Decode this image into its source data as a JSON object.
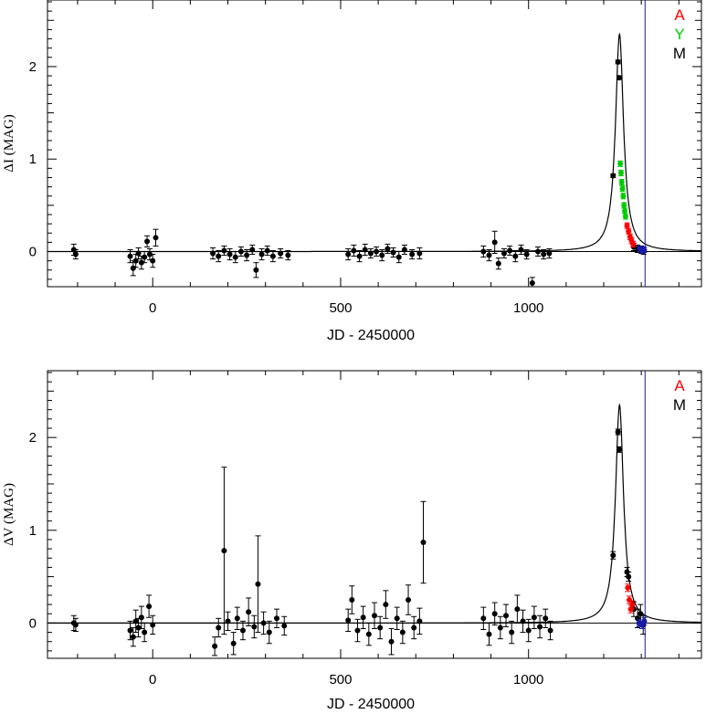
{
  "chart_data": [
    {
      "type": "scatter",
      "title": "",
      "xlabel": "JD - 2450000",
      "ylabel": "ΔI (MAG)",
      "xlim": [
        -280,
        1460
      ],
      "ylim": [
        -0.38,
        2.72
      ],
      "xticks": [
        0,
        500,
        1000
      ],
      "yticks": [
        0,
        1,
        2
      ],
      "grid": false,
      "legend": {
        "placement": "top-right",
        "entries": [
          {
            "label": "A",
            "color": "#ff0000"
          },
          {
            "label": "Y",
            "color": "#00cc00"
          },
          {
            "label": "M",
            "color": "#000000"
          }
        ]
      },
      "vline_x": 1310,
      "model_peak": {
        "t0": 1242,
        "amp": 2.35,
        "tE_half": 13
      },
      "series": [
        {
          "name": "M",
          "color": "#000000",
          "points": [
            {
              "x": -210,
              "y": 0.02,
              "e": 0.06
            },
            {
              "x": -205,
              "y": -0.03,
              "e": 0.05
            },
            {
              "x": -60,
              "y": -0.05,
              "e": 0.07
            },
            {
              "x": -52,
              "y": -0.18,
              "e": 0.08
            },
            {
              "x": -45,
              "y": -0.1,
              "e": 0.07
            },
            {
              "x": -38,
              "y": -0.02,
              "e": 0.06
            },
            {
              "x": -30,
              "y": -0.12,
              "e": 0.07
            },
            {
              "x": -22,
              "y": -0.06,
              "e": 0.06
            },
            {
              "x": -15,
              "y": 0.11,
              "e": 0.06
            },
            {
              "x": -8,
              "y": -0.03,
              "e": 0.06
            },
            {
              "x": 0,
              "y": -0.1,
              "e": 0.07
            },
            {
              "x": 8,
              "y": 0.15,
              "e": 0.09
            },
            {
              "x": 160,
              "y": -0.02,
              "e": 0.06
            },
            {
              "x": 175,
              "y": -0.05,
              "e": 0.06
            },
            {
              "x": 190,
              "y": 0.01,
              "e": 0.05
            },
            {
              "x": 205,
              "y": -0.03,
              "e": 0.06
            },
            {
              "x": 220,
              "y": -0.06,
              "e": 0.06
            },
            {
              "x": 235,
              "y": 0.0,
              "e": 0.05
            },
            {
              "x": 250,
              "y": -0.04,
              "e": 0.06
            },
            {
              "x": 265,
              "y": 0.02,
              "e": 0.05
            },
            {
              "x": 275,
              "y": -0.2,
              "e": 0.08
            },
            {
              "x": 290,
              "y": -0.03,
              "e": 0.06
            },
            {
              "x": 305,
              "y": 0.01,
              "e": 0.05
            },
            {
              "x": 320,
              "y": -0.05,
              "e": 0.06
            },
            {
              "x": 340,
              "y": -0.02,
              "e": 0.05
            },
            {
              "x": 360,
              "y": -0.04,
              "e": 0.05
            },
            {
              "x": 520,
              "y": -0.03,
              "e": 0.06
            },
            {
              "x": 535,
              "y": 0.01,
              "e": 0.06
            },
            {
              "x": 550,
              "y": -0.05,
              "e": 0.06
            },
            {
              "x": 565,
              "y": 0.02,
              "e": 0.06
            },
            {
              "x": 580,
              "y": -0.02,
              "e": 0.05
            },
            {
              "x": 595,
              "y": 0.0,
              "e": 0.05
            },
            {
              "x": 610,
              "y": -0.04,
              "e": 0.06
            },
            {
              "x": 625,
              "y": 0.03,
              "e": 0.05
            },
            {
              "x": 640,
              "y": -0.01,
              "e": 0.05
            },
            {
              "x": 655,
              "y": -0.06,
              "e": 0.06
            },
            {
              "x": 670,
              "y": 0.02,
              "e": 0.05
            },
            {
              "x": 690,
              "y": -0.03,
              "e": 0.05
            },
            {
              "x": 710,
              "y": -0.02,
              "e": 0.06
            },
            {
              "x": 880,
              "y": 0.0,
              "e": 0.06
            },
            {
              "x": 895,
              "y": -0.04,
              "e": 0.06
            },
            {
              "x": 910,
              "y": 0.1,
              "e": 0.12
            },
            {
              "x": 920,
              "y": -0.13,
              "e": 0.06
            },
            {
              "x": 935,
              "y": -0.02,
              "e": 0.05
            },
            {
              "x": 950,
              "y": 0.01,
              "e": 0.05
            },
            {
              "x": 965,
              "y": -0.05,
              "e": 0.06
            },
            {
              "x": 980,
              "y": 0.02,
              "e": 0.05
            },
            {
              "x": 995,
              "y": -0.03,
              "e": 0.05
            },
            {
              "x": 1010,
              "y": -0.34,
              "e": 0.06
            },
            {
              "x": 1025,
              "y": 0.0,
              "e": 0.05
            },
            {
              "x": 1040,
              "y": -0.03,
              "e": 0.05
            },
            {
              "x": 1055,
              "y": -0.02,
              "e": 0.05
            },
            {
              "x": 1225,
              "y": 0.82,
              "e": 0.02
            },
            {
              "x": 1238,
              "y": 2.05,
              "e": 0.02
            },
            {
              "x": 1241,
              "y": 1.88,
              "e": 0.02
            },
            {
              "x": 1280,
              "y": 0.05,
              "e": 0.04
            },
            {
              "x": 1290,
              "y": 0.03,
              "e": 0.04
            },
            {
              "x": 1300,
              "y": 0.02,
              "e": 0.04
            },
            {
              "x": 1306,
              "y": 0.01,
              "e": 0.04
            }
          ]
        },
        {
          "name": "Y",
          "color": "#00cc00",
          "points": [
            {
              "x": 1244,
              "y": 0.95,
              "e": 0.03
            },
            {
              "x": 1246,
              "y": 0.85,
              "e": 0.03
            },
            {
              "x": 1248,
              "y": 0.75,
              "e": 0.03
            },
            {
              "x": 1250,
              "y": 0.68,
              "e": 0.03
            },
            {
              "x": 1252,
              "y": 0.6,
              "e": 0.03
            },
            {
              "x": 1254,
              "y": 0.5,
              "e": 0.03
            },
            {
              "x": 1256,
              "y": 0.44,
              "e": 0.03
            },
            {
              "x": 1258,
              "y": 0.38,
              "e": 0.03
            }
          ]
        },
        {
          "name": "A",
          "color": "#ff0000",
          "points": [
            {
              "x": 1262,
              "y": 0.28,
              "e": 0.03
            },
            {
              "x": 1266,
              "y": 0.22,
              "e": 0.03
            },
            {
              "x": 1270,
              "y": 0.16,
              "e": 0.03
            },
            {
              "x": 1274,
              "y": 0.12,
              "e": 0.03
            },
            {
              "x": 1278,
              "y": 0.08,
              "e": 0.03
            }
          ]
        },
        {
          "name": "",
          "color": "#1a1aaa",
          "points": [
            {
              "x": 1296,
              "y": 0.03,
              "e": 0.03
            },
            {
              "x": 1302,
              "y": 0.01,
              "e": 0.03
            },
            {
              "x": 1308,
              "y": 0.02,
              "e": 0.03
            }
          ]
        }
      ]
    },
    {
      "type": "scatter",
      "title": "",
      "xlabel": "JD - 2450000",
      "ylabel": "ΔV (MAG)",
      "xlim": [
        -280,
        1460
      ],
      "ylim": [
        -0.38,
        2.72
      ],
      "xticks": [
        0,
        500,
        1000
      ],
      "yticks": [
        0,
        1,
        2
      ],
      "grid": false,
      "legend": {
        "placement": "top-right",
        "entries": [
          {
            "label": "A",
            "color": "#ff0000"
          },
          {
            "label": "M",
            "color": "#000000"
          }
        ]
      },
      "vline_x": 1310,
      "model_peak": {
        "t0": 1242,
        "amp": 2.35,
        "tE_half": 13
      },
      "series": [
        {
          "name": "M",
          "color": "#000000",
          "points": [
            {
              "x": -210,
              "y": 0.0,
              "e": 0.08
            },
            {
              "x": -205,
              "y": -0.02,
              "e": 0.07
            },
            {
              "x": -60,
              "y": -0.08,
              "e": 0.1
            },
            {
              "x": -52,
              "y": -0.15,
              "e": 0.1
            },
            {
              "x": -45,
              "y": 0.02,
              "e": 0.12
            },
            {
              "x": -38,
              "y": -0.05,
              "e": 0.1
            },
            {
              "x": -30,
              "y": 0.06,
              "e": 0.12
            },
            {
              "x": -22,
              "y": -0.1,
              "e": 0.1
            },
            {
              "x": -10,
              "y": 0.18,
              "e": 0.12
            },
            {
              "x": 0,
              "y": -0.02,
              "e": 0.1
            },
            {
              "x": 165,
              "y": -0.25,
              "e": 0.1
            },
            {
              "x": 175,
              "y": -0.05,
              "e": 0.1
            },
            {
              "x": 190,
              "y": 0.78,
              "e": 0.9
            },
            {
              "x": 200,
              "y": 0.02,
              "e": 0.1
            },
            {
              "x": 215,
              "y": -0.22,
              "e": 0.12
            },
            {
              "x": 225,
              "y": 0.05,
              "e": 0.12
            },
            {
              "x": 240,
              "y": -0.08,
              "e": 0.1
            },
            {
              "x": 255,
              "y": 0.12,
              "e": 0.15
            },
            {
              "x": 270,
              "y": -0.04,
              "e": 0.12
            },
            {
              "x": 280,
              "y": 0.42,
              "e": 0.52
            },
            {
              "x": 295,
              "y": 0.0,
              "e": 0.12
            },
            {
              "x": 310,
              "y": -0.1,
              "e": 0.12
            },
            {
              "x": 330,
              "y": 0.05,
              "e": 0.1
            },
            {
              "x": 350,
              "y": -0.03,
              "e": 0.1
            },
            {
              "x": 520,
              "y": 0.03,
              "e": 0.12
            },
            {
              "x": 530,
              "y": 0.25,
              "e": 0.15
            },
            {
              "x": 545,
              "y": -0.08,
              "e": 0.12
            },
            {
              "x": 560,
              "y": 0.06,
              "e": 0.12
            },
            {
              "x": 575,
              "y": -0.12,
              "e": 0.12
            },
            {
              "x": 590,
              "y": 0.08,
              "e": 0.14
            },
            {
              "x": 605,
              "y": -0.05,
              "e": 0.12
            },
            {
              "x": 620,
              "y": 0.2,
              "e": 0.15
            },
            {
              "x": 635,
              "y": -0.2,
              "e": 0.14
            },
            {
              "x": 650,
              "y": 0.05,
              "e": 0.12
            },
            {
              "x": 665,
              "y": -0.1,
              "e": 0.12
            },
            {
              "x": 680,
              "y": 0.25,
              "e": 0.16
            },
            {
              "x": 695,
              "y": -0.05,
              "e": 0.12
            },
            {
              "x": 710,
              "y": 0.02,
              "e": 0.14
            },
            {
              "x": 720,
              "y": 0.87,
              "e": 0.44
            },
            {
              "x": 880,
              "y": 0.05,
              "e": 0.12
            },
            {
              "x": 895,
              "y": -0.12,
              "e": 0.12
            },
            {
              "x": 910,
              "y": 0.1,
              "e": 0.12
            },
            {
              "x": 925,
              "y": -0.05,
              "e": 0.12
            },
            {
              "x": 940,
              "y": 0.08,
              "e": 0.12
            },
            {
              "x": 955,
              "y": -0.1,
              "e": 0.12
            },
            {
              "x": 970,
              "y": 0.15,
              "e": 0.15
            },
            {
              "x": 985,
              "y": 0.02,
              "e": 0.12
            },
            {
              "x": 1000,
              "y": -0.08,
              "e": 0.12
            },
            {
              "x": 1015,
              "y": 0.06,
              "e": 0.12
            },
            {
              "x": 1030,
              "y": -0.04,
              "e": 0.12
            },
            {
              "x": 1045,
              "y": 0.05,
              "e": 0.1
            },
            {
              "x": 1058,
              "y": -0.08,
              "e": 0.1
            },
            {
              "x": 1225,
              "y": 0.73,
              "e": 0.04
            },
            {
              "x": 1238,
              "y": 2.06,
              "e": 0.03
            },
            {
              "x": 1241,
              "y": 1.87,
              "e": 0.03
            },
            {
              "x": 1262,
              "y": 0.55,
              "e": 0.05
            },
            {
              "x": 1266,
              "y": 0.5,
              "e": 0.05
            },
            {
              "x": 1280,
              "y": 0.15,
              "e": 0.08
            },
            {
              "x": 1290,
              "y": 0.05,
              "e": 0.1
            },
            {
              "x": 1298,
              "y": 0.1,
              "e": 0.1
            },
            {
              "x": 1305,
              "y": -0.02,
              "e": 0.1
            }
          ]
        },
        {
          "name": "A",
          "color": "#ff0000",
          "points": [
            {
              "x": 1264,
              "y": 0.38,
              "e": 0.04
            },
            {
              "x": 1268,
              "y": 0.25,
              "e": 0.04
            },
            {
              "x": 1272,
              "y": 0.15,
              "e": 0.04
            },
            {
              "x": 1276,
              "y": 0.2,
              "e": 0.04
            }
          ]
        },
        {
          "name": "",
          "color": "#1a1aaa",
          "points": [
            {
              "x": 1294,
              "y": 0.0,
              "e": 0.04
            },
            {
              "x": 1302,
              "y": -0.02,
              "e": 0.04
            },
            {
              "x": 1308,
              "y": 0.02,
              "e": 0.04
            }
          ]
        }
      ]
    }
  ]
}
